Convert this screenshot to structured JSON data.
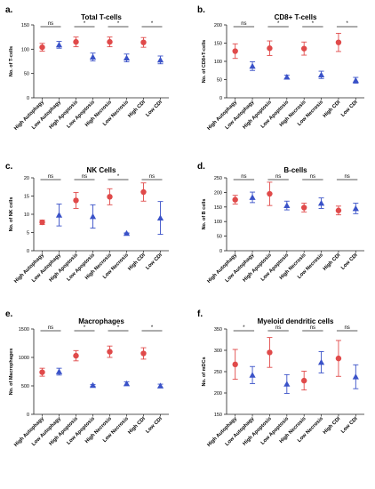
{
  "chart_data": [
    {
      "label": "a.",
      "title": "Total T-cells",
      "type": "scatter",
      "ylabel": "No. of T-cells",
      "ylim": [
        0,
        150
      ],
      "yticks": [
        0,
        50,
        100,
        150
      ],
      "ytick_labels": [
        "0",
        "50",
        "100",
        "150"
      ],
      "categories": [
        "High Autophagy",
        "Low Autophagy",
        "High Apoptosis",
        "Low Apoptosis",
        "High Necrosis",
        "Low Necrosis",
        "High CDI",
        "Low CDI"
      ],
      "series": [
        {
          "color": "#e04a4a",
          "marker": "circle",
          "values": [
            104,
            null,
            115,
            null,
            115,
            null,
            114,
            null
          ],
          "errors": [
            8,
            null,
            10,
            null,
            10,
            null,
            10,
            null
          ]
        },
        {
          "color": "#3a52c8",
          "marker": "triangle",
          "values": [
            null,
            109,
            null,
            84,
            null,
            82,
            null,
            78
          ],
          "errors": [
            null,
            7,
            null,
            8,
            null,
            8,
            null,
            8
          ]
        }
      ],
      "significance": [
        {
          "pair": [
            0,
            1
          ],
          "text": "ns"
        },
        {
          "pair": [
            2,
            3
          ],
          "text": "*"
        },
        {
          "pair": [
            4,
            5
          ],
          "text": "*"
        },
        {
          "pair": [
            6,
            7
          ],
          "text": "*"
        }
      ]
    },
    {
      "label": "b.",
      "title": "CD8+ T-cells",
      "type": "scatter",
      "ylabel": "No. of CD8+T-cells",
      "ylim": [
        0,
        200
      ],
      "yticks": [
        0,
        50,
        100,
        150,
        200
      ],
      "ytick_labels": [
        "0",
        "50",
        "100",
        "150",
        "200"
      ],
      "categories": [
        "High Autophagy",
        "Low Autophagy",
        "High Apoptosis",
        "Low Apoptosis",
        "High Necrosis",
        "Low Necrosis",
        "High CDI",
        "Low CDI"
      ],
      "series": [
        {
          "color": "#e04a4a",
          "marker": "circle",
          "values": [
            128,
            null,
            136,
            null,
            135,
            null,
            152,
            null
          ],
          "errors": [
            20,
            null,
            20,
            null,
            18,
            null,
            25,
            null
          ]
        },
        {
          "color": "#3a52c8",
          "marker": "triangle",
          "values": [
            null,
            87,
            null,
            57,
            null,
            63,
            null,
            48
          ],
          "errors": [
            null,
            12,
            null,
            5,
            null,
            10,
            null,
            8
          ]
        }
      ],
      "significance": [
        {
          "pair": [
            0,
            1
          ],
          "text": "ns"
        },
        {
          "pair": [
            2,
            3
          ],
          "text": "*"
        },
        {
          "pair": [
            4,
            5
          ],
          "text": "*"
        },
        {
          "pair": [
            6,
            7
          ],
          "text": "*"
        }
      ]
    },
    {
      "label": "c.",
      "title": "NK Cells",
      "type": "scatter",
      "ylabel": "No. of NK cells",
      "ylim": [
        0,
        20
      ],
      "yticks": [
        0,
        5,
        10,
        15,
        20
      ],
      "ytick_labels": [
        "0",
        "5",
        "10",
        "15",
        "20"
      ],
      "categories": [
        "High Autophagy",
        "Low Autophagy",
        "High Apoptosis",
        "Low Apoptosis",
        "High Necrosis",
        "Low Necrosis",
        "High CDI",
        "Low CDI"
      ],
      "series": [
        {
          "color": "#e04a4a",
          "marker": "circle",
          "values": [
            7.8,
            null,
            13.8,
            null,
            14.8,
            null,
            16.1,
            null
          ],
          "errors": [
            0.6,
            null,
            2.2,
            null,
            2.2,
            null,
            2.5,
            null
          ]
        },
        {
          "color": "#3a52c8",
          "marker": "triangle",
          "values": [
            null,
            9.8,
            null,
            9.4,
            null,
            4.8,
            null,
            9.0
          ],
          "errors": [
            null,
            3.0,
            null,
            3.2,
            null,
            0.1,
            null,
            4.5
          ]
        }
      ],
      "significance": [
        {
          "pair": [
            0,
            1
          ],
          "text": "ns"
        },
        {
          "pair": [
            2,
            3
          ],
          "text": "ns"
        },
        {
          "pair": [
            4,
            5
          ],
          "text": "*"
        },
        {
          "pair": [
            6,
            7
          ],
          "text": "ns"
        }
      ]
    },
    {
      "label": "d.",
      "title": "B-cells",
      "type": "scatter",
      "ylabel": "No. of B cells",
      "ylim": [
        0,
        250
      ],
      "yticks": [
        0,
        50,
        100,
        150,
        200,
        250
      ],
      "ytick_labels": [
        "0",
        "50",
        "100",
        "150",
        "200",
        "250"
      ],
      "categories": [
        "High Autophagy",
        "Low Autophagy",
        "High Apoptosis",
        "Low Apoptosis",
        "High Necrosis",
        "Low Necrosis",
        "High CDI",
        "Low CDI"
      ],
      "series": [
        {
          "color": "#e04a4a",
          "marker": "circle",
          "values": [
            175,
            null,
            195,
            null,
            148,
            null,
            138,
            null
          ],
          "errors": [
            15,
            null,
            40,
            null,
            15,
            null,
            15,
            null
          ]
        },
        {
          "color": "#3a52c8",
          "marker": "triangle",
          "values": [
            null,
            183,
            null,
            155,
            null,
            163,
            null,
            145
          ],
          "errors": [
            null,
            18,
            null,
            15,
            null,
            18,
            null,
            18
          ]
        }
      ],
      "significance": [
        {
          "pair": [
            0,
            1
          ],
          "text": "ns"
        },
        {
          "pair": [
            2,
            3
          ],
          "text": "ns"
        },
        {
          "pair": [
            4,
            5
          ],
          "text": "ns"
        },
        {
          "pair": [
            6,
            7
          ],
          "text": "ns"
        }
      ]
    },
    {
      "label": "e.",
      "title": "Macrophages",
      "type": "scatter",
      "ylabel": "No. of Macrophages",
      "ylim": [
        0,
        1500
      ],
      "yticks": [
        0,
        500,
        1000,
        1500
      ],
      "ytick_labels": [
        "0",
        "500",
        "1000",
        "1500"
      ],
      "categories": [
        "High Autophagy",
        "Low Autophagy",
        "High Apoptosis",
        "Low Apoptosis",
        "High Necrosis",
        "Low Necrosis",
        "High CDI",
        "Low CDI"
      ],
      "series": [
        {
          "color": "#e04a4a",
          "marker": "circle",
          "values": [
            740,
            null,
            1030,
            null,
            1100,
            null,
            1070,
            null
          ],
          "errors": [
            70,
            null,
            90,
            null,
            100,
            null,
            100,
            null
          ]
        },
        {
          "color": "#3a52c8",
          "marker": "triangle",
          "values": [
            null,
            750,
            null,
            510,
            null,
            540,
            null,
            500
          ],
          "errors": [
            null,
            60,
            null,
            15,
            null,
            30,
            null,
            30
          ]
        }
      ],
      "significance": [
        {
          "pair": [
            0,
            1
          ],
          "text": "ns"
        },
        {
          "pair": [
            2,
            3
          ],
          "text": "*"
        },
        {
          "pair": [
            4,
            5
          ],
          "text": "*"
        },
        {
          "pair": [
            6,
            7
          ],
          "text": "*"
        }
      ]
    },
    {
      "label": "f.",
      "title": "Myeloid dendritic cells",
      "type": "scatter",
      "ylabel": "No. of mDCs",
      "ylim": [
        150,
        350
      ],
      "yticks": [
        150,
        200,
        250,
        300,
        350
      ],
      "ytick_labels": [
        "150",
        "200",
        "250",
        "300",
        "350"
      ],
      "categories": [
        "High Autophagy",
        "Low Autophagy",
        "High Apoptosis",
        "Low Apoptosis",
        "High Necrosis",
        "Low Necrosis",
        "High CDI",
        "Low CDI"
      ],
      "series": [
        {
          "color": "#e04a4a",
          "marker": "circle",
          "values": [
            267,
            null,
            295,
            null,
            229,
            null,
            281,
            null
          ],
          "errors": [
            35,
            null,
            35,
            null,
            22,
            null,
            42,
            null
          ]
        },
        {
          "color": "#3a52c8",
          "marker": "triangle",
          "values": [
            null,
            242,
            null,
            221,
            null,
            272,
            null,
            238
          ],
          "errors": [
            null,
            20,
            null,
            22,
            null,
            25,
            null,
            28
          ]
        }
      ],
      "significance": [
        {
          "pair": [
            0,
            1
          ],
          "text": "*"
        },
        {
          "pair": [
            2,
            3
          ],
          "text": "ns"
        },
        {
          "pair": [
            4,
            5
          ],
          "text": "ns"
        },
        {
          "pair": [
            6,
            7
          ],
          "text": "ns"
        }
      ]
    }
  ]
}
